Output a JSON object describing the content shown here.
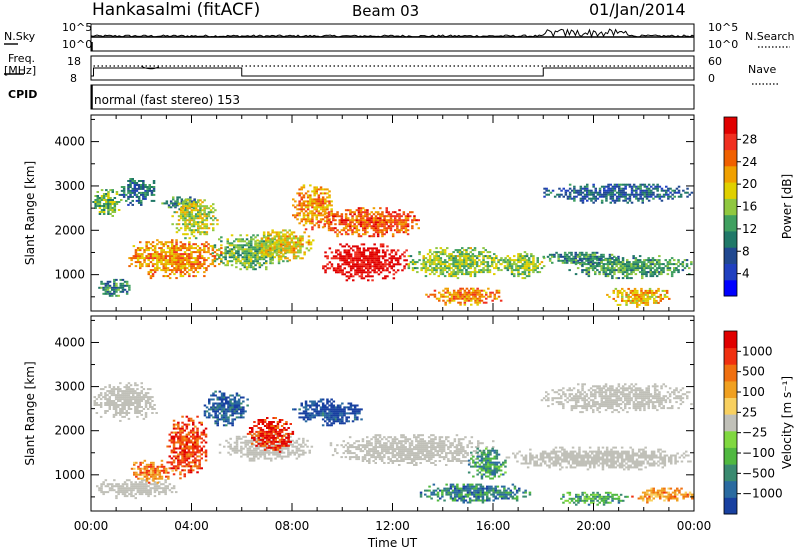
{
  "header": {
    "station": "Hankasalmi (fitACF)",
    "beam": "Beam 03",
    "date": "01/Jan/2014"
  },
  "top_panels": {
    "nsky_label": "N.Sky",
    "nsearch_label": "N.Search",
    "noise_ticks": [
      "10^5",
      "10^0"
    ],
    "freq_label": "Freq.",
    "freq_unit": "[MHz]",
    "freq_ticks": [
      "18",
      "8"
    ],
    "nave_label": "Nave",
    "nave_ticks": [
      "60",
      "0"
    ],
    "cpid_label": "CPID",
    "cpid_text": "normal (fast stereo) 153"
  },
  "colors": {
    "axis": "#000000",
    "background": "#ffffff",
    "ground_scatter": "#c0c0b8"
  },
  "chart_data": [
    {
      "type": "heatmap",
      "panel": "power",
      "ylabel": "Slant Range [km]",
      "ylim": [
        180,
        4600
      ],
      "yticks": [
        1000,
        2000,
        3000,
        4000
      ],
      "xlim": [
        0,
        24
      ],
      "colorbar_label": "Power [dB]",
      "colorbar_ticks": [
        "28",
        "24",
        "20",
        "16",
        "12",
        "8",
        "4"
      ],
      "colorbar_colors": [
        "#0000ff",
        "#2040c0",
        "#204890",
        "#207868",
        "#40a060",
        "#90c840",
        "#e0d000",
        "#f0a000",
        "#f06000",
        "#f03020",
        "#e00000"
      ],
      "scatter_regions": [
        {
          "t0": 0.05,
          "t1": 1.2,
          "r0": 2300,
          "r1": 2900,
          "level": 0.45
        },
        {
          "t0": 1.1,
          "t1": 2.6,
          "r0": 2550,
          "r1": 3150,
          "level": 0.3
        },
        {
          "t0": 2.8,
          "t1": 4.2,
          "r0": 2450,
          "r1": 2750,
          "level": 0.35
        },
        {
          "t0": 0.2,
          "t1": 1.6,
          "r0": 500,
          "r1": 900,
          "level": 0.35
        },
        {
          "t0": 1.4,
          "t1": 5.2,
          "r0": 900,
          "r1": 1800,
          "level": 0.7
        },
        {
          "t0": 3.2,
          "t1": 5.0,
          "r0": 1800,
          "r1": 2700,
          "level": 0.55
        },
        {
          "t0": 4.8,
          "t1": 7.8,
          "r0": 1100,
          "r1": 1900,
          "level": 0.45
        },
        {
          "t0": 6.5,
          "t1": 8.8,
          "r0": 1300,
          "r1": 2000,
          "level": 0.6
        },
        {
          "t0": 8.0,
          "t1": 9.6,
          "r0": 2000,
          "r1": 3000,
          "level": 0.7
        },
        {
          "t0": 9.0,
          "t1": 13.0,
          "r0": 1800,
          "r1": 2500,
          "level": 0.8
        },
        {
          "t0": 9.2,
          "t1": 12.6,
          "r0": 850,
          "r1": 1700,
          "level": 0.97
        },
        {
          "t0": 12.6,
          "t1": 16.5,
          "r0": 900,
          "r1": 1600,
          "level": 0.5
        },
        {
          "t0": 13.3,
          "t1": 16.4,
          "r0": 300,
          "r1": 700,
          "level": 0.72
        },
        {
          "t0": 16.2,
          "t1": 18.0,
          "r0": 900,
          "r1": 1500,
          "level": 0.5
        },
        {
          "t0": 17.8,
          "t1": 21.0,
          "r0": 1200,
          "r1": 1500,
          "level": 0.35
        },
        {
          "t0": 18.0,
          "t1": 23.9,
          "r0": 2600,
          "r1": 3050,
          "level": 0.25
        },
        {
          "t0": 19.0,
          "t1": 23.9,
          "r0": 900,
          "r1": 1400,
          "level": 0.4
        },
        {
          "t0": 20.5,
          "t1": 23.0,
          "r0": 250,
          "r1": 700,
          "level": 0.65
        }
      ]
    },
    {
      "type": "heatmap",
      "panel": "velocity",
      "ylabel": "Slant Range [km]",
      "xlabel": "Time UT",
      "ylim": [
        180,
        4600
      ],
      "yticks": [
        1000,
        2000,
        3000,
        4000
      ],
      "xlim": [
        0,
        24
      ],
      "xticks": [
        "00:00",
        "04:00",
        "08:00",
        "12:00",
        "16:00",
        "20:00",
        "00:00"
      ],
      "colorbar_label": "Velocity [m s⁻¹]",
      "colorbar_ticks": [
        "1000",
        "500",
        "100",
        "25",
        "−25",
        "−100",
        "−500",
        "−1000"
      ],
      "colorbar_colors": [
        "#1840a0",
        "#2a6aa0",
        "#3a8a70",
        "#50b840",
        "#80d840",
        "#c0c0b8",
        "#f8d060",
        "#f0a020",
        "#f07010",
        "#f03010",
        "#e00000"
      ],
      "scatter_regions": [
        {
          "t0": 0.1,
          "t1": 2.6,
          "r0": 2200,
          "r1": 3100,
          "level": -99
        },
        {
          "t0": 0.2,
          "t1": 3.4,
          "r0": 450,
          "r1": 900,
          "level": -99
        },
        {
          "t0": 1.5,
          "t1": 3.2,
          "r0": 800,
          "r1": 1300,
          "level": 0.75
        },
        {
          "t0": 3.0,
          "t1": 4.6,
          "r0": 900,
          "r1": 2300,
          "level": 0.85
        },
        {
          "t0": 4.4,
          "t1": 6.2,
          "r0": 2100,
          "r1": 2900,
          "level": 0.1
        },
        {
          "t0": 5.0,
          "t1": 8.8,
          "r0": 1300,
          "r1": 1900,
          "level": -99
        },
        {
          "t0": 6.2,
          "t1": 8.0,
          "r0": 1500,
          "r1": 2300,
          "level": 0.9
        },
        {
          "t0": 8.0,
          "t1": 10.8,
          "r0": 2100,
          "r1": 2700,
          "level": 0.05
        },
        {
          "t0": 9.5,
          "t1": 16.0,
          "r0": 1200,
          "r1": 1900,
          "level": -99
        },
        {
          "t0": 13.0,
          "t1": 17.5,
          "r0": 350,
          "r1": 800,
          "level": 0.2
        },
        {
          "t0": 15.0,
          "t1": 16.5,
          "r0": 850,
          "r1": 1600,
          "level": 0.25
        },
        {
          "t0": 16.5,
          "t1": 23.9,
          "r0": 1100,
          "r1": 1600,
          "level": -99
        },
        {
          "t0": 17.9,
          "t1": 23.9,
          "r0": 2400,
          "r1": 3050,
          "level": -99
        },
        {
          "t0": 18.5,
          "t1": 21.5,
          "r0": 300,
          "r1": 600,
          "level": 0.3
        },
        {
          "t0": 21.5,
          "t1": 23.9,
          "r0": 350,
          "r1": 700,
          "level": 0.7
        }
      ]
    }
  ]
}
